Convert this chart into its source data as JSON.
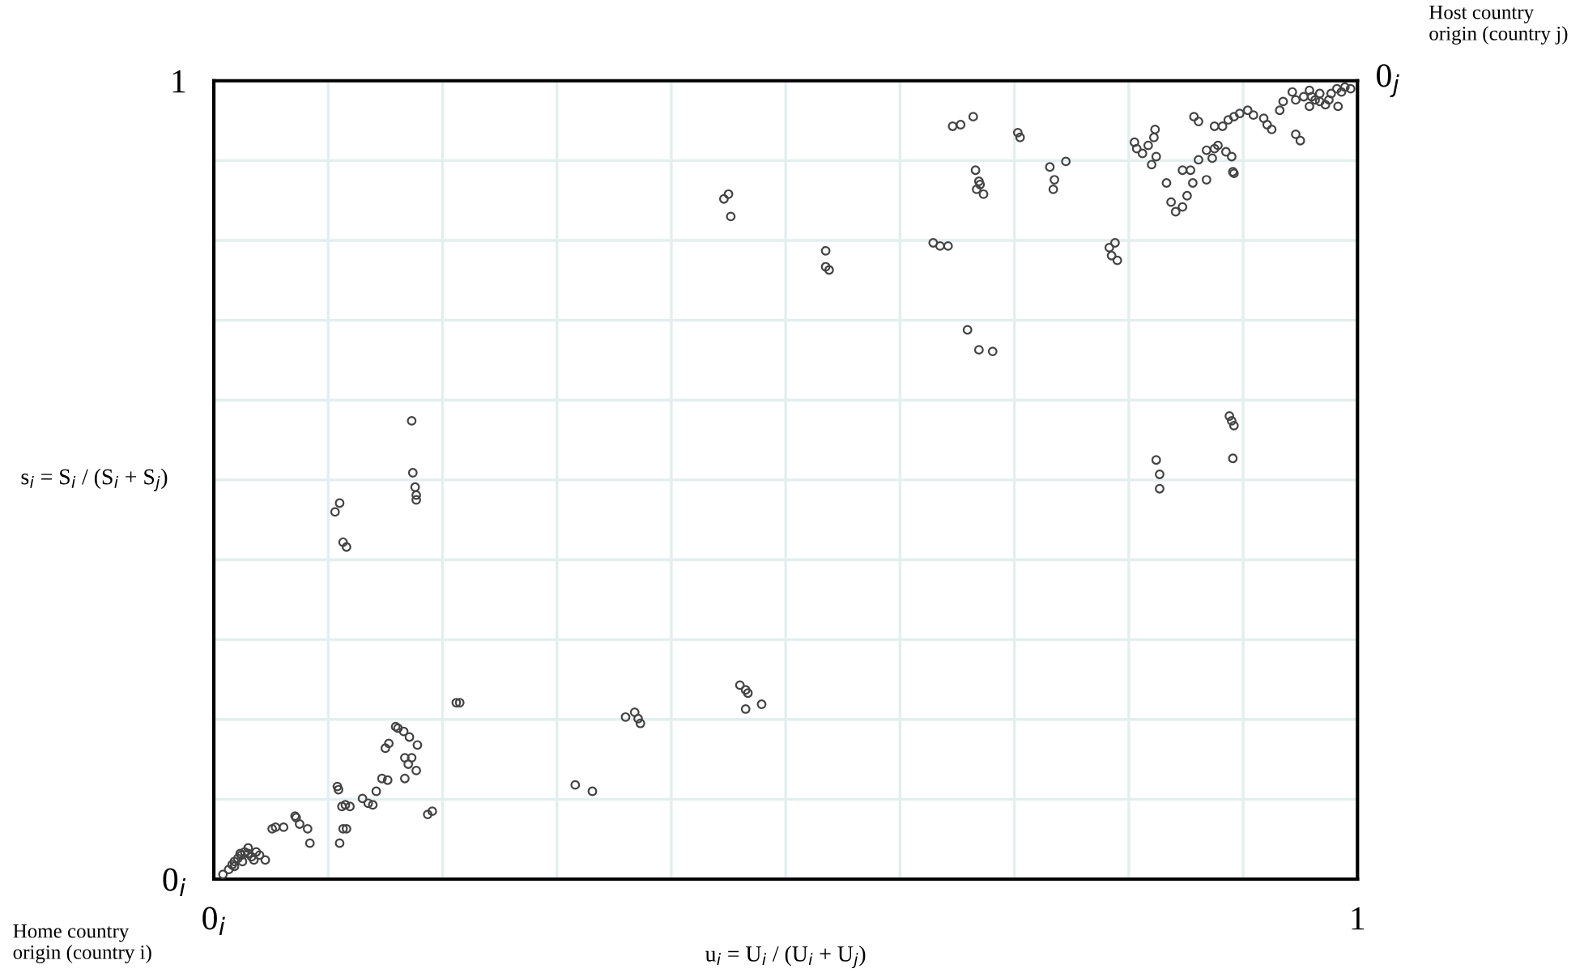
{
  "chart_data": {
    "type": "scatter",
    "xlabel": "u$_{i}$ = U$_{i}$ / (U$_{i}$ + U$_{j}$)",
    "ylabel": "s$_{i}$ = S$_{i}$ / (S$_{i}$ + S$_{j}$)",
    "xlim": [
      0,
      1
    ],
    "ylim": [
      0,
      1
    ],
    "xticks": [
      {
        "value": 0,
        "label": "0$_{i}$"
      },
      {
        "value": 0.1,
        "label": null
      },
      {
        "value": 0.2,
        "label": null
      },
      {
        "value": 0.3,
        "label": null
      },
      {
        "value": 0.4,
        "label": null
      },
      {
        "value": 0.5,
        "label": null
      },
      {
        "value": 0.6,
        "label": null
      },
      {
        "value": 0.7,
        "label": null
      },
      {
        "value": 0.8,
        "label": null
      },
      {
        "value": 0.9,
        "label": null
      },
      {
        "value": 1,
        "label": "1"
      }
    ],
    "yticks": [
      {
        "value": 0,
        "label": "0$_{i}$"
      },
      {
        "value": 0.1,
        "label": null
      },
      {
        "value": 0.2,
        "label": null
      },
      {
        "value": 0.3,
        "label": null
      },
      {
        "value": 0.4,
        "label": null
      },
      {
        "value": 0.5,
        "label": null
      },
      {
        "value": 0.6,
        "label": null
      },
      {
        "value": 0.7,
        "label": null
      },
      {
        "value": 0.8,
        "label": null
      },
      {
        "value": 0.9,
        "label": null
      },
      {
        "value": 1,
        "label": "1"
      }
    ],
    "grid": true,
    "marker": "circle",
    "annotations": [
      "Home country\norigin (country i)",
      "Host country\norigin (country j)",
      {
        "text": "0$_{j}$",
        "x": 1,
        "y": 1
      }
    ],
    "series": [
      {
        "color": "#444444",
        "x": [
          0.008,
          0.013,
          0.016,
          0.018,
          0.021,
          0.024,
          0.027,
          0.03,
          0.033,
          0.035,
          0.04,
          0.045,
          0.018,
          0.025,
          0.03,
          0.037,
          0.023,
          0.051,
          0.054,
          0.061,
          0.072,
          0.071,
          0.075,
          0.082,
          0.084,
          0.108,
          0.109,
          0.112,
          0.115,
          0.119,
          0.11,
          0.113,
          0.116,
          0.13,
          0.135,
          0.139,
          0.142,
          0.147,
          0.152,
          0.15,
          0.153,
          0.159,
          0.161,
          0.166,
          0.171,
          0.178,
          0.167,
          0.173,
          0.167,
          0.17,
          0.177,
          0.187,
          0.191,
          0.212,
          0.215,
          0.316,
          0.331,
          0.36,
          0.368,
          0.371,
          0.373,
          0.46,
          0.465,
          0.467,
          0.465,
          0.479,
          0.106,
          0.11,
          0.113,
          0.116,
          0.173,
          0.174,
          0.176,
          0.177,
          0.177,
          0.446,
          0.45,
          0.452,
          0.535,
          0.535,
          0.538,
          0.629,
          0.635,
          0.642,
          0.646,
          0.653,
          0.664,
          0.666,
          0.669,
          0.667,
          0.673,
          0.67,
          0.659,
          0.669,
          0.681,
          0.703,
          0.705,
          0.731,
          0.735,
          0.734,
          0.745,
          0.783,
          0.788,
          0.785,
          0.79,
          0.805,
          0.807,
          0.812,
          0.817,
          0.822,
          0.823,
          0.824,
          0.82,
          0.824,
          0.827,
          0.827,
          0.833,
          0.837,
          0.841,
          0.847,
          0.851,
          0.856,
          0.854,
          0.861,
          0.868,
          0.873,
          0.875,
          0.878,
          0.885,
          0.89,
          0.891,
          0.892,
          0.857,
          0.861,
          0.868,
          0.847,
          0.888,
          0.89,
          0.892,
          0.891,
          0.875,
          0.882,
          0.887,
          0.892,
          0.897,
          0.904,
          0.909,
          0.918,
          0.921,
          0.925,
          0.946,
          0.95,
          0.932,
          0.935,
          0.943,
          0.946,
          0.953,
          0.958,
          0.96,
          0.963,
          0.967,
          0.972,
          0.975,
          0.977,
          0.982,
          0.986,
          0.989,
          0.994,
          0.983,
          0.967,
          0.958
        ],
        "values": [
          0.006,
          0.012,
          0.018,
          0.022,
          0.026,
          0.03,
          0.034,
          0.032,
          0.028,
          0.024,
          0.03,
          0.024,
          0.016,
          0.022,
          0.039,
          0.034,
          0.032,
          0.063,
          0.065,
          0.065,
          0.077,
          0.079,
          0.069,
          0.063,
          0.045,
          0.116,
          0.112,
          0.091,
          0.093,
          0.091,
          0.045,
          0.063,
          0.063,
          0.101,
          0.095,
          0.093,
          0.11,
          0.126,
          0.124,
          0.164,
          0.17,
          0.191,
          0.189,
          0.185,
          0.178,
          0.168,
          0.152,
          0.152,
          0.126,
          0.144,
          0.136,
          0.081,
          0.085,
          0.221,
          0.221,
          0.118,
          0.11,
          0.203,
          0.209,
          0.201,
          0.195,
          0.243,
          0.237,
          0.233,
          0.213,
          0.219,
          0.46,
          0.471,
          0.422,
          0.416,
          0.574,
          0.509,
          0.491,
          0.481,
          0.475,
          0.852,
          0.858,
          0.83,
          0.787,
          0.767,
          0.763,
          0.797,
          0.793,
          0.793,
          0.943,
          0.945,
          0.955,
          0.888,
          0.874,
          0.864,
          0.858,
          0.87,
          0.688,
          0.663,
          0.661,
          0.935,
          0.929,
          0.892,
          0.876,
          0.864,
          0.899,
          0.791,
          0.797,
          0.781,
          0.775,
          0.923,
          0.915,
          0.909,
          0.919,
          0.929,
          0.939,
          0.905,
          0.895,
          0.525,
          0.507,
          0.489,
          0.872,
          0.848,
          0.836,
          0.842,
          0.856,
          0.872,
          0.888,
          0.901,
          0.876,
          0.903,
          0.915,
          0.919,
          0.911,
          0.905,
          0.886,
          0.884,
          0.955,
          0.949,
          0.913,
          0.888,
          0.58,
          0.574,
          0.568,
          0.527,
          0.943,
          0.943,
          0.951,
          0.955,
          0.959,
          0.963,
          0.957,
          0.953,
          0.945,
          0.939,
          0.933,
          0.925,
          0.963,
          0.974,
          0.986,
          0.976,
          0.98,
          0.988,
          0.98,
          0.976,
          0.974,
          0.97,
          0.976,
          0.984,
          0.99,
          0.986,
          0.992,
          0.99,
          0.968,
          0.984,
          0.968
        ]
      }
    ]
  }
}
